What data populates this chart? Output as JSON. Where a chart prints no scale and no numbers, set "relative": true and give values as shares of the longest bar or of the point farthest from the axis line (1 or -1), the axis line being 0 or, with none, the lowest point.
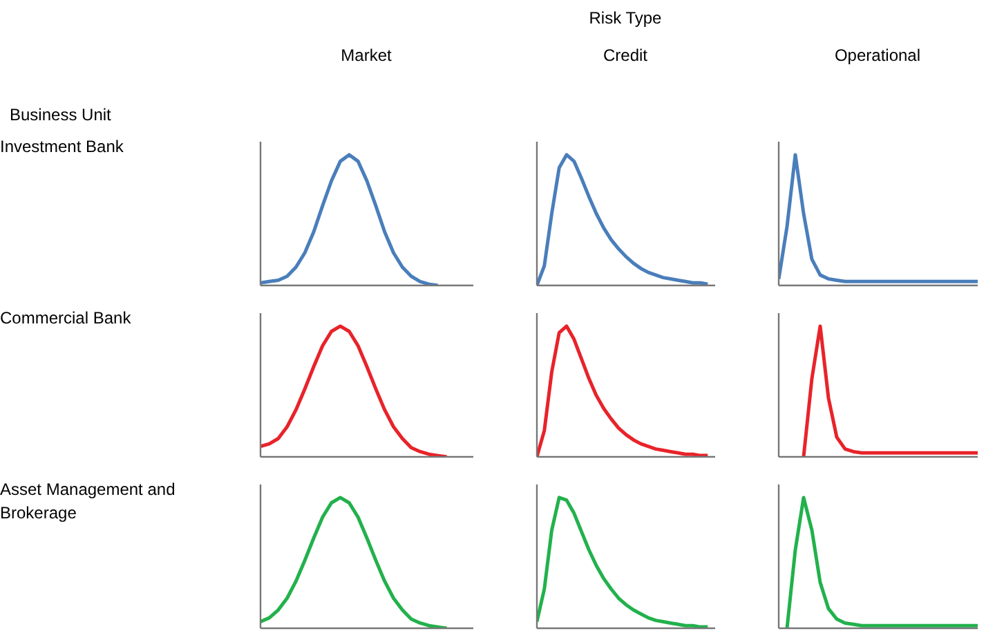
{
  "chart_data": [
    {
      "type": "other",
      "annotations": [
        "Risk Type",
        "Business Unit"
      ]
    },
    {
      "type": "line",
      "relative": true,
      "title": "Market",
      "ylabel": "Investment Bank",
      "categories": [
        null,
        null,
        null,
        null,
        null,
        null,
        null,
        null,
        null,
        null,
        null,
        null,
        null,
        null,
        null,
        null,
        null,
        null,
        null,
        null,
        null,
        null,
        null,
        null,
        null
      ],
      "series": [
        {
          "color": "#4a7ebb",
          "values": [
            0.02,
            0.03,
            0.04,
            0.07,
            0.14,
            0.25,
            0.41,
            0.61,
            0.8,
            0.95,
            1,
            0.95,
            0.8,
            0.61,
            0.41,
            0.25,
            0.14,
            0.07,
            0.03,
            0.01,
            0.0,
            null,
            null,
            null,
            null
          ]
        }
      ]
    },
    {
      "type": "line",
      "relative": true,
      "title": "Credit",
      "categories": [
        null,
        null,
        null,
        null,
        null,
        null,
        null,
        null,
        null,
        null,
        null,
        null,
        null,
        null,
        null,
        null,
        null,
        null,
        null,
        null,
        null,
        null,
        null,
        null,
        null
      ],
      "series": [
        {
          "color": "#4a7ebb",
          "values": [
            0,
            0.15,
            0.55,
            0.9,
            1,
            0.95,
            0.82,
            0.68,
            0.55,
            0.44,
            0.35,
            0.28,
            0.22,
            0.17,
            0.13,
            0.1,
            0.08,
            0.06,
            0.05,
            0.04,
            0.03,
            0.02,
            0.02,
            0.01,
            null
          ]
        }
      ]
    },
    {
      "type": "line",
      "relative": true,
      "title": "Operational",
      "categories": [
        null,
        null,
        null,
        null,
        null,
        null,
        null,
        null,
        null,
        null,
        null,
        null,
        null,
        null,
        null,
        null,
        null,
        null,
        null,
        null,
        null,
        null,
        null,
        null,
        null
      ],
      "series": [
        {
          "color": "#4a7ebb",
          "values": [
            0.05,
            0.45,
            1,
            0.55,
            0.2,
            0.08,
            0.05,
            0.04,
            0.03,
            0.03,
            0.03,
            0.03,
            0.03,
            0.03,
            0.03,
            0.03,
            0.03,
            0.03,
            0.03,
            0.03,
            0.03,
            0.03,
            0.03,
            0.03,
            0.03
          ]
        }
      ]
    },
    {
      "type": "line",
      "relative": true,
      "ylabel": "Commercial Bank",
      "categories": [
        null,
        null,
        null,
        null,
        null,
        null,
        null,
        null,
        null,
        null,
        null,
        null,
        null,
        null,
        null,
        null,
        null,
        null,
        null,
        null,
        null,
        null,
        null,
        null,
        null
      ],
      "series": [
        {
          "color": "#e8232a",
          "values": [
            0.08,
            0.1,
            0.14,
            0.23,
            0.36,
            0.52,
            0.69,
            0.85,
            0.96,
            1,
            0.96,
            0.85,
            0.69,
            0.52,
            0.36,
            0.23,
            0.14,
            0.07,
            0.04,
            0.02,
            0.01,
            0,
            null,
            null,
            null
          ]
        }
      ]
    },
    {
      "type": "line",
      "relative": true,
      "categories": [
        null,
        null,
        null,
        null,
        null,
        null,
        null,
        null,
        null,
        null,
        null,
        null,
        null,
        null,
        null,
        null,
        null,
        null,
        null,
        null,
        null,
        null,
        null,
        null,
        null
      ],
      "series": [
        {
          "color": "#e8232a",
          "values": [
            0,
            0.2,
            0.65,
            0.95,
            1,
            0.9,
            0.75,
            0.6,
            0.47,
            0.37,
            0.29,
            0.22,
            0.17,
            0.13,
            0.1,
            0.08,
            0.06,
            0.05,
            0.04,
            0.03,
            0.02,
            0.02,
            0.01,
            0.01,
            null
          ]
        }
      ]
    },
    {
      "type": "line",
      "relative": true,
      "categories": [
        null,
        null,
        null,
        null,
        null,
        null,
        null,
        null,
        null,
        null,
        null,
        null,
        null,
        null,
        null,
        null,
        null,
        null,
        null,
        null,
        null,
        null,
        null,
        null,
        null
      ],
      "series": [
        {
          "color": "#e8232a",
          "values": [
            null,
            null,
            null,
            0,
            0.6,
            1,
            0.45,
            0.15,
            0.06,
            0.04,
            0.03,
            0.03,
            0.03,
            0.03,
            0.03,
            0.03,
            0.03,
            0.03,
            0.03,
            0.03,
            0.03,
            0.03,
            0.03,
            0.03,
            0.03
          ]
        }
      ]
    },
    {
      "type": "line",
      "relative": true,
      "ylabel": "Asset Management and Brokerage",
      "categories": [
        null,
        null,
        null,
        null,
        null,
        null,
        null,
        null,
        null,
        null,
        null,
        null,
        null,
        null,
        null,
        null,
        null,
        null,
        null,
        null,
        null,
        null,
        null,
        null,
        null
      ],
      "series": [
        {
          "color": "#22b14c",
          "values": [
            0.05,
            0.08,
            0.14,
            0.23,
            0.36,
            0.52,
            0.69,
            0.85,
            0.96,
            1,
            0.96,
            0.85,
            0.69,
            0.52,
            0.36,
            0.23,
            0.14,
            0.07,
            0.04,
            0.02,
            0.01,
            0,
            null,
            null,
            null
          ]
        }
      ]
    },
    {
      "type": "line",
      "relative": true,
      "categories": [
        null,
        null,
        null,
        null,
        null,
        null,
        null,
        null,
        null,
        null,
        null,
        null,
        null,
        null,
        null,
        null,
        null,
        null,
        null,
        null,
        null,
        null,
        null,
        null,
        null
      ],
      "series": [
        {
          "color": "#22b14c",
          "values": [
            0.05,
            0.3,
            0.75,
            1,
            0.98,
            0.88,
            0.74,
            0.6,
            0.48,
            0.38,
            0.3,
            0.23,
            0.18,
            0.14,
            0.11,
            0.08,
            0.06,
            0.05,
            0.04,
            0.03,
            0.02,
            0.02,
            0.01,
            0.01,
            null
          ]
        }
      ]
    },
    {
      "type": "line",
      "relative": true,
      "categories": [
        null,
        null,
        null,
        null,
        null,
        null,
        null,
        null,
        null,
        null,
        null,
        null,
        null,
        null,
        null,
        null,
        null,
        null,
        null,
        null,
        null,
        null,
        null,
        null,
        null
      ],
      "series": [
        {
          "color": "#22b14c",
          "values": [
            null,
            0,
            0.6,
            1,
            0.75,
            0.35,
            0.15,
            0.07,
            0.04,
            0.03,
            0.02,
            0.02,
            0.02,
            0.02,
            0.02,
            0.02,
            0.02,
            0.02,
            0.02,
            0.02,
            0.02,
            0.02,
            0.02,
            0.02,
            0.02
          ]
        }
      ]
    }
  ]
}
